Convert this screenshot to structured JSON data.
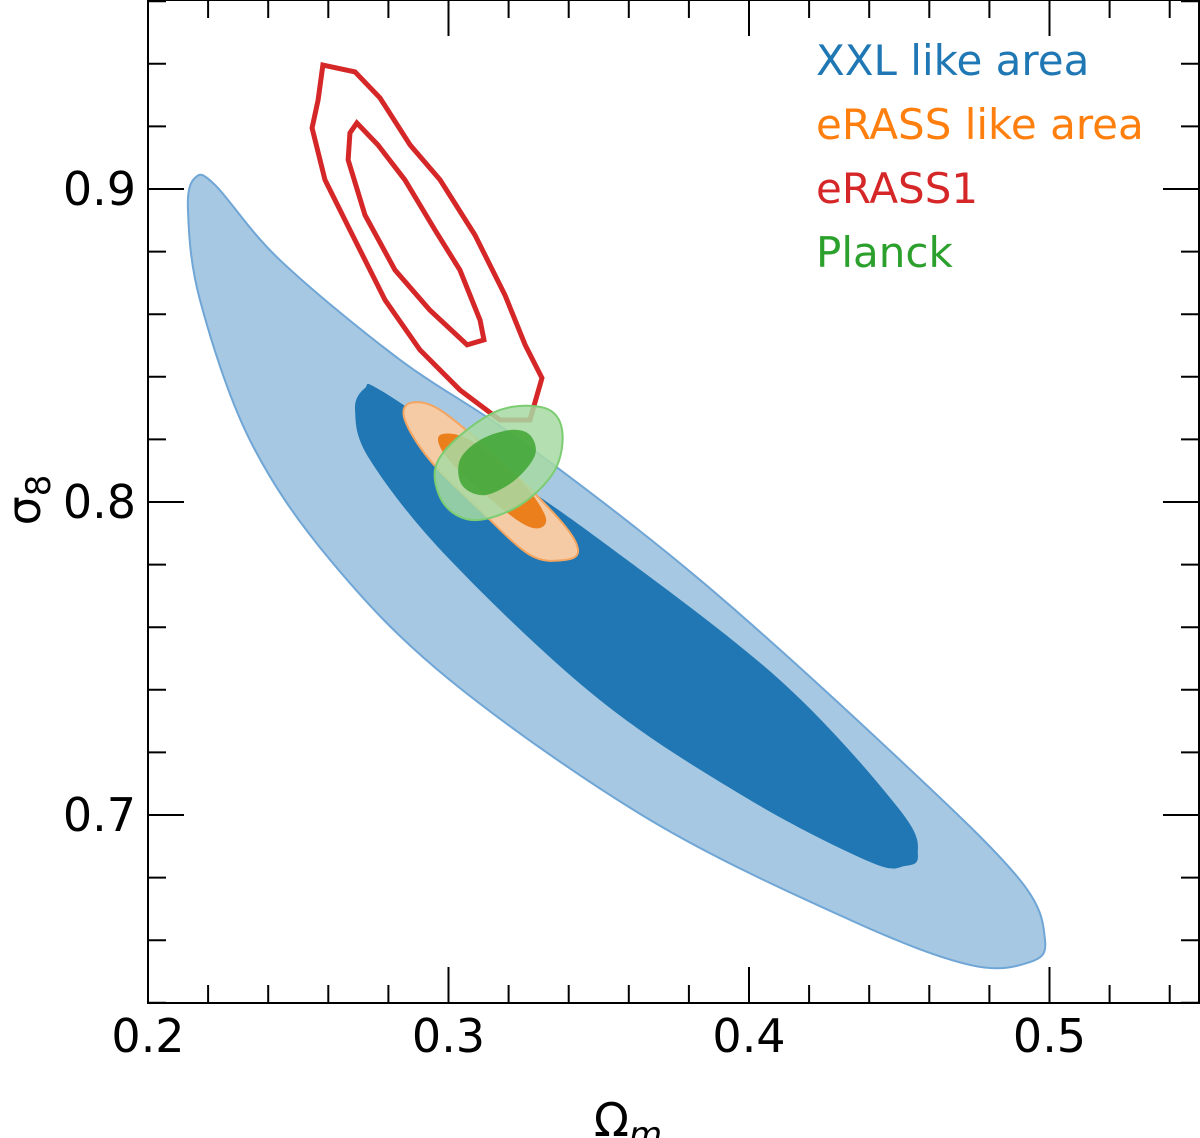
{
  "chart_data": {
    "type": "contour",
    "xlabel": "Ω",
    "xlabel_sub": "m",
    "ylabel": "σ",
    "ylabel_sub": "8",
    "xlim": [
      0.2,
      0.55
    ],
    "ylim": [
      0.64,
      0.9604
    ],
    "x_ticks": [
      {
        "value": 0.2,
        "label": "0.2"
      },
      {
        "value": 0.3,
        "label": "0.3"
      },
      {
        "value": 0.4,
        "label": "0.4"
      },
      {
        "value": 0.5,
        "label": "0.5"
      }
    ],
    "y_ticks": [
      {
        "value": 0.7,
        "label": "0.7"
      },
      {
        "value": 0.8,
        "label": "0.8"
      },
      {
        "value": 0.9,
        "label": "0.9"
      }
    ],
    "x_minor_step": 0.02,
    "y_minor_step": 0.02,
    "grid": false,
    "legend_position": "top-right",
    "legend": [
      {
        "label": "XXL like area",
        "color": "#1f77b4"
      },
      {
        "label": "eRASS like area",
        "color": "#ff7f0e"
      },
      {
        "label": "eRASS1",
        "color": "#d62728"
      },
      {
        "label": "Planck",
        "color": "#2ca02c"
      }
    ],
    "series": [
      {
        "name": "XXL like area",
        "style": "filled",
        "color": "#1f77b4",
        "contours": [
          {
            "level": "2sigma",
            "points": [
              [
                0.2156,
                0.9035
              ],
              [
                0.2223,
                0.9013
              ],
              [
                0.2439,
                0.8773
              ],
              [
                0.2839,
                0.8454
              ],
              [
                0.3238,
                0.8198
              ],
              [
                0.3837,
                0.7751
              ],
              [
                0.4502,
                0.7176
              ],
              [
                0.4902,
                0.6792
              ],
              [
                0.4985,
                0.6601
              ],
              [
                0.4935,
                0.653
              ],
              [
                0.4735,
                0.6521
              ],
              [
                0.4336,
                0.6665
              ],
              [
                0.3671,
                0.6984
              ],
              [
                0.3005,
                0.7431
              ],
              [
                0.2606,
                0.7815
              ],
              [
                0.2339,
                0.8198
              ],
              [
                0.2173,
                0.8645
              ],
              [
                0.2133,
                0.8933
              ]
            ]
          },
          {
            "level": "1sigma",
            "points": [
              [
                0.2722,
                0.8364
              ],
              [
                0.2772,
                0.8358
              ],
              [
                0.3072,
                0.8166
              ],
              [
                0.3504,
                0.7879
              ],
              [
                0.4103,
                0.7431
              ],
              [
                0.4502,
                0.7016
              ],
              [
                0.4562,
                0.6872
              ],
              [
                0.4519,
                0.6837
              ],
              [
                0.4403,
                0.685
              ],
              [
                0.4003,
                0.7048
              ],
              [
                0.3504,
                0.7367
              ],
              [
                0.3005,
                0.7815
              ],
              [
                0.2739,
                0.8134
              ],
              [
                0.2689,
                0.8294
              ]
            ]
          }
        ]
      },
      {
        "name": "eRASS like area",
        "style": "filled",
        "color": "#ff7f0e",
        "contours": [
          {
            "level": "2sigma",
            "points": [
              [
                0.2872,
                0.8316
              ],
              [
                0.2972,
                0.8294
              ],
              [
                0.3171,
                0.8134
              ],
              [
                0.3371,
                0.7942
              ],
              [
                0.3431,
                0.7847
              ],
              [
                0.3388,
                0.7815
              ],
              [
                0.3271,
                0.7831
              ],
              [
                0.3105,
                0.7974
              ],
              [
                0.2938,
                0.8134
              ],
              [
                0.2855,
                0.8262
              ]
            ]
          },
          {
            "level": "1sigma",
            "points": [
              [
                0.2972,
                0.8214
              ],
              [
                0.3072,
                0.8198
              ],
              [
                0.3238,
                0.807
              ],
              [
                0.3321,
                0.7958
              ],
              [
                0.3304,
                0.7917
              ],
              [
                0.3238,
                0.7936
              ],
              [
                0.3105,
                0.8038
              ],
              [
                0.2988,
                0.815
              ]
            ]
          }
        ]
      },
      {
        "name": "eRASS1",
        "style": "line",
        "color": "#d62728",
        "contours": [
          {
            "level": "2sigma",
            "points": [
              [
                0.2582,
                0.9396
              ],
              [
                0.2689,
                0.9374
              ],
              [
                0.2772,
                0.9291
              ],
              [
                0.2872,
                0.9141
              ],
              [
                0.2972,
                0.9029
              ],
              [
                0.3088,
                0.8853
              ],
              [
                0.3188,
                0.8661
              ],
              [
                0.3255,
                0.8502
              ],
              [
                0.3311,
                0.8396
              ],
              [
                0.3271,
                0.8262
              ],
              [
                0.3171,
                0.8262
              ],
              [
                0.3038,
                0.8358
              ],
              [
                0.2905,
                0.8486
              ],
              [
                0.2789,
                0.8645
              ],
              [
                0.2672,
                0.8869
              ],
              [
                0.2589,
                0.9029
              ],
              [
                0.2546,
                0.9195
              ],
              [
                0.2566,
                0.9284
              ]
            ]
          },
          {
            "level": "1sigma",
            "points": [
              [
                0.2695,
                0.9211
              ],
              [
                0.2765,
                0.9141
              ],
              [
                0.2855,
                0.9029
              ],
              [
                0.2955,
                0.8869
              ],
              [
                0.3038,
                0.8741
              ],
              [
                0.3105,
                0.8581
              ],
              [
                0.3118,
                0.8518
              ],
              [
                0.3062,
                0.8502
              ],
              [
                0.2938,
                0.8613
              ],
              [
                0.2822,
                0.8741
              ],
              [
                0.2722,
                0.8917
              ],
              [
                0.2666,
                0.9093
              ],
              [
                0.2672,
                0.9179
              ]
            ]
          }
        ]
      },
      {
        "name": "Planck",
        "style": "filled",
        "color": "#2ca02c",
        "contours": [
          {
            "level": "2sigma",
            "points": [
              [
                0.3171,
                0.8294
              ],
              [
                0.3321,
                0.83
              ],
              [
                0.3378,
                0.823
              ],
              [
                0.3354,
                0.8102
              ],
              [
                0.3238,
                0.799
              ],
              [
                0.3088,
                0.7942
              ],
              [
                0.2988,
                0.799
              ],
              [
                0.2955,
                0.8102
              ],
              [
                0.3022,
                0.8198
              ]
            ]
          },
          {
            "level": "1sigma",
            "points": [
              [
                0.3205,
                0.823
              ],
              [
                0.3271,
                0.8214
              ],
              [
                0.3288,
                0.815
              ],
              [
                0.3221,
                0.807
              ],
              [
                0.3121,
                0.8022
              ],
              [
                0.3045,
                0.8054
              ],
              [
                0.3038,
                0.8134
              ],
              [
                0.3105,
                0.8198
              ]
            ]
          }
        ]
      }
    ]
  }
}
